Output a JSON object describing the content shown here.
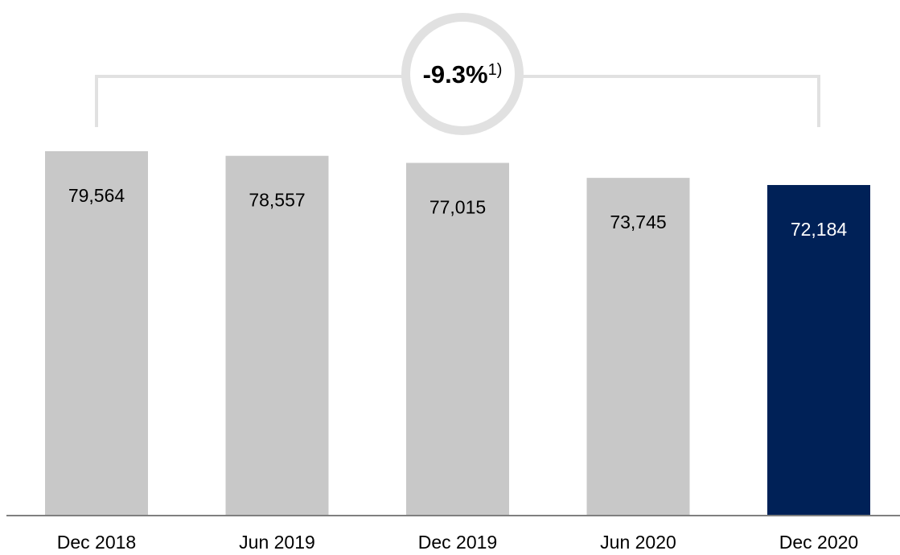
{
  "chart_data": {
    "type": "bar",
    "categories": [
      "Dec 2018",
      "Jun 2019",
      "Dec 2019",
      "Jun 2020",
      "Dec 2020"
    ],
    "values": [
      79564,
      78557,
      77015,
      73745,
      72184
    ],
    "value_labels": [
      "79,564",
      "78,557",
      "77,015",
      "73,745",
      "72,184"
    ],
    "highlight_index": 4,
    "ylim": [
      0,
      79564
    ],
    "grid": false,
    "title": "",
    "xlabel": "",
    "ylabel": "",
    "annotation": {
      "text": "-9.3%",
      "footnote": "1)",
      "from_category": "Dec 2018",
      "to_category": "Dec 2020"
    },
    "colors": {
      "bar": "#c8c8c8",
      "highlight_bar": "#002157",
      "bracket": "#e1e1e1",
      "axis": "#7f7f7f"
    }
  }
}
